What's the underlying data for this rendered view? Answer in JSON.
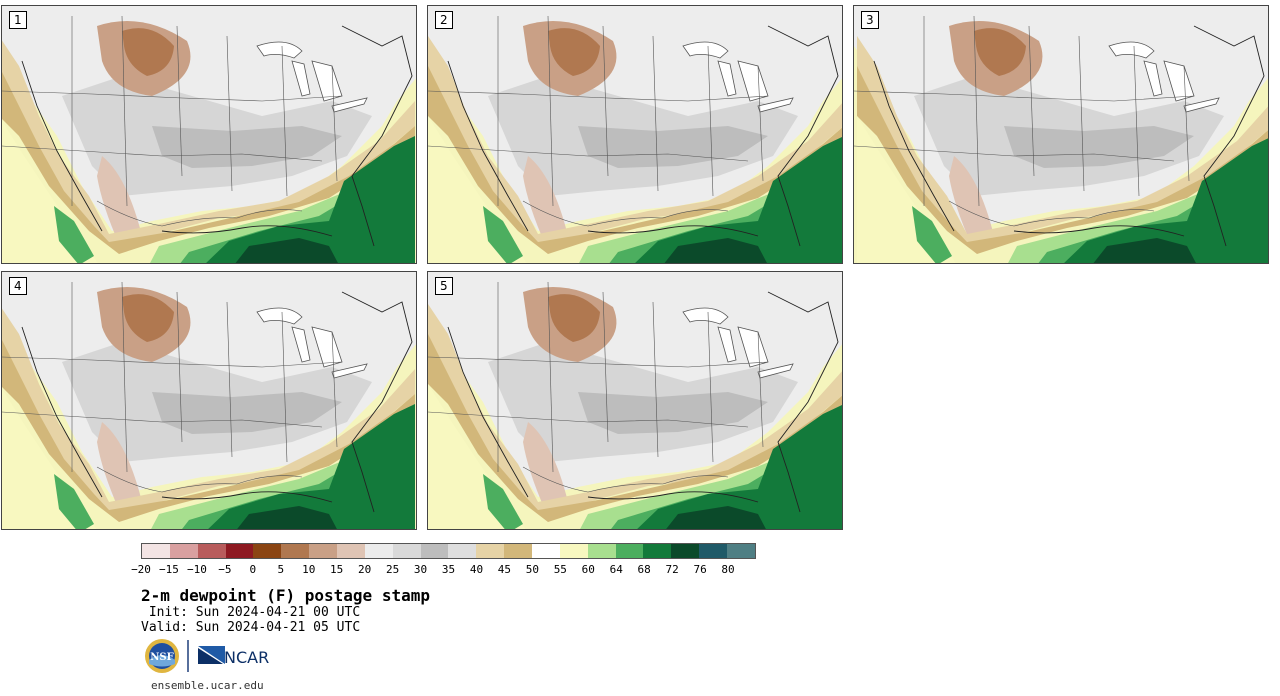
{
  "stamps": [
    {
      "label": "1"
    },
    {
      "label": "2"
    },
    {
      "label": "3"
    },
    {
      "label": "4"
    },
    {
      "label": "5"
    }
  ],
  "colorbar": {
    "ticks": [
      "−20",
      "−15",
      "−10",
      "−5",
      "0",
      "5",
      "10",
      "15",
      "20",
      "25",
      "30",
      "35",
      "40",
      "45",
      "50",
      "55",
      "60",
      "64",
      "68",
      "72",
      "76",
      "80"
    ],
    "colors": [
      "#f3e4e4",
      "#d9a0a0",
      "#b85c5c",
      "#8e1a22",
      "#8b4513",
      "#b07850",
      "#c9a086",
      "#dfc4b4",
      "#ececec",
      "#d9d9d9",
      "#bdbdbd",
      "#dedede",
      "#e6d3a6",
      "#d2b77a",
      "#ffffff",
      "#f8f8c0",
      "#a8df8f",
      "#4cae5f",
      "#137a3b",
      "#0b4a2a",
      "#1f5a68",
      "#4f7f84"
    ]
  },
  "title": "2-m dewpoint (F) postage stamp",
  "init": " Init: Sun 2024-04-21 00 UTC",
  "valid": "Valid: Sun 2024-04-21 05 UTC",
  "logos": {
    "nsf": "NSF",
    "ncar": "NCAR"
  },
  "url": "ensemble.ucar.edu"
}
